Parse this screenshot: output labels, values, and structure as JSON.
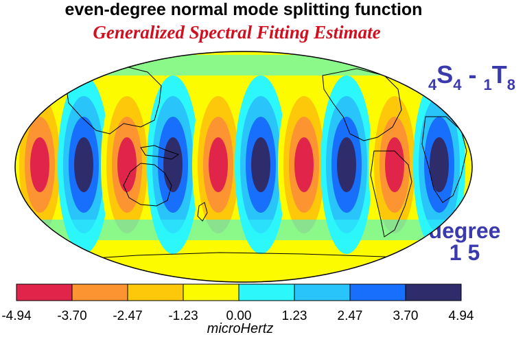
{
  "title": "even-degree normal mode splitting function",
  "subtitle": "Generalized Spectral Fitting Estimate",
  "mode_label": {
    "left_sub": "4",
    "left_main": "S",
    "left_main_sub": "4",
    "separator": " - ",
    "right_sub": "1",
    "right_main": "T",
    "right_main_sub": "8"
  },
  "degree_label": {
    "line1": "degree",
    "line2": "1 5"
  },
  "colorbar": {
    "ticks": [
      "-4.94",
      "-3.70",
      "-2.47",
      "-1.23",
      "0.00",
      "1.23",
      "2.47",
      "3.70",
      "4.94"
    ],
    "colors": [
      "#e1244a",
      "#fb9431",
      "#fdc80a",
      "#fdfb00",
      "#2cf7fb",
      "#28c4fa",
      "#176ffb",
      "#2f2c6b"
    ],
    "units": "microHertz"
  },
  "map": {
    "projection": "Mollweide (Pacific-centered)",
    "field": "normal mode splitting function",
    "range": [
      -4.94,
      4.94
    ]
  }
}
